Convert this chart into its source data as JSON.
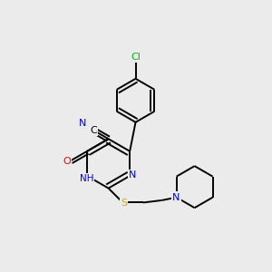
{
  "bg_color": "#ebebeb",
  "atom_colors": {
    "N": "#0000ff",
    "O": "#ff0000",
    "S": "#ccaa00",
    "Cl": "#00bb00"
  },
  "bond_color": "#000000",
  "figsize": [
    3.0,
    3.0
  ],
  "dpi": 100
}
